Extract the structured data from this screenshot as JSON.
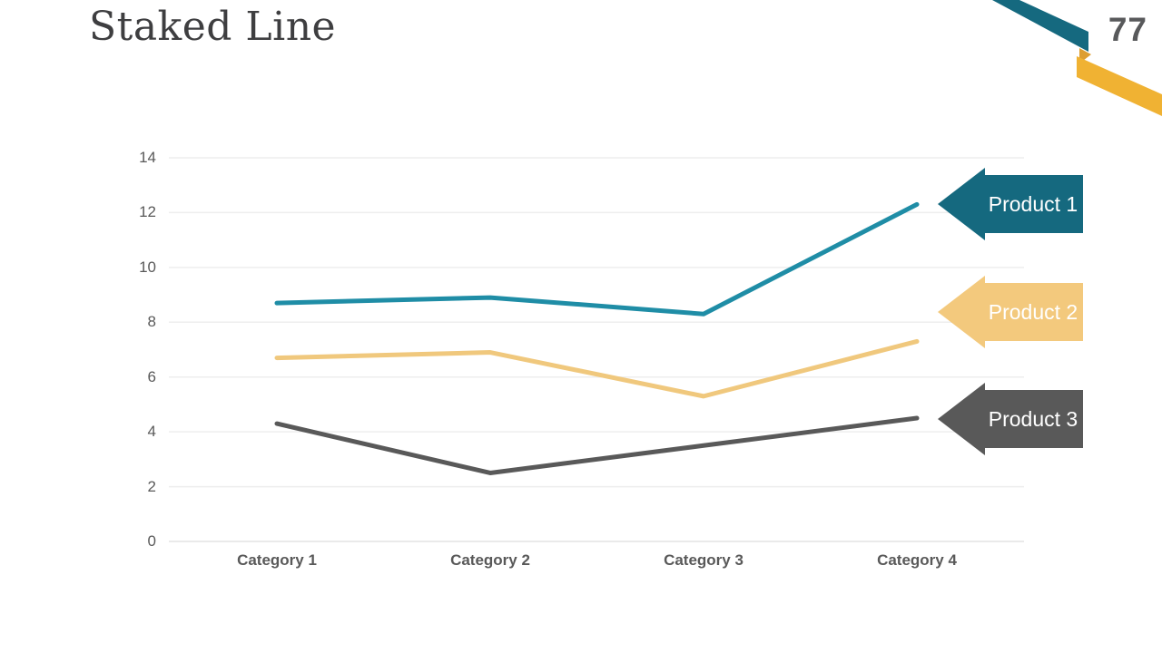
{
  "slide": {
    "title": "Staked Line",
    "page_number": "77"
  },
  "colors": {
    "accent_teal": "#15697f",
    "accent_gold": "#f0b233",
    "accent_gold_dark": "#dd9e31",
    "title_text": "#3e3e40",
    "page_number_text": "#58595b",
    "axis_text": "#595959",
    "gridline": "#eeeeee",
    "baseline": "#e3e3e3",
    "arrow_text": "#ffffff"
  },
  "chart_data": {
    "type": "line",
    "title": "Staked Line",
    "categories": [
      "Category 1",
      "Category 2",
      "Category 3",
      "Category 4"
    ],
    "series": [
      {
        "name": "Product 1",
        "values": [
          8.7,
          8.9,
          8.3,
          12.3
        ],
        "color": "#1f8da6",
        "label_color": "#15697f"
      },
      {
        "name": "Product 2",
        "values": [
          6.7,
          6.9,
          5.3,
          7.3
        ],
        "color": "#f0c87d",
        "label_color": "#f3c97d"
      },
      {
        "name": "Product 3",
        "values": [
          4.3,
          2.5,
          3.5,
          4.5
        ],
        "color": "#595959",
        "label_color": "#595959"
      }
    ],
    "yticks": [
      0,
      2,
      4,
      6,
      8,
      10,
      12,
      14
    ],
    "ylim": [
      0,
      14
    ],
    "grid": true,
    "legend_position": "right-arrows"
  }
}
